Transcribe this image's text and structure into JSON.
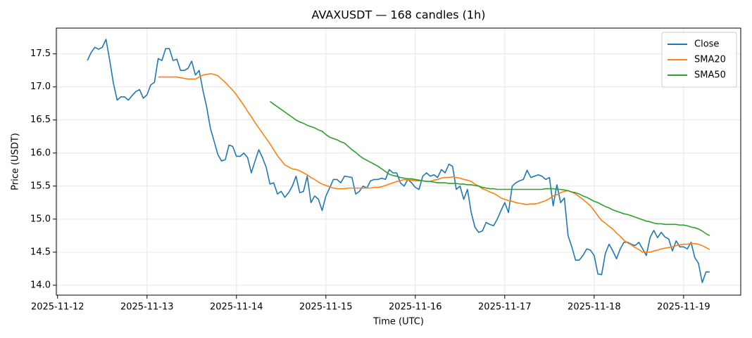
{
  "chart_data": {
    "type": "line",
    "title": "AVAXUSDT — 168 candles (1h)",
    "x_label": "Time (UTC)",
    "y_label": "Price (USDT)",
    "x": [
      "2025-11-12 08:00",
      "2025-11-12 09:00",
      "2025-11-12 10:00",
      "2025-11-12 11:00",
      "2025-11-12 12:00",
      "2025-11-12 13:00",
      "2025-11-12 14:00",
      "2025-11-12 15:00",
      "2025-11-12 16:00",
      "2025-11-12 17:00",
      "2025-11-12 18:00",
      "2025-11-12 19:00",
      "2025-11-12 20:00",
      "2025-11-12 21:00",
      "2025-11-12 22:00",
      "2025-11-12 23:00",
      "2025-11-13 00:00",
      "2025-11-13 01:00",
      "2025-11-13 02:00",
      "2025-11-13 03:00",
      "2025-11-13 04:00",
      "2025-11-13 05:00",
      "2025-11-13 06:00",
      "2025-11-13 07:00",
      "2025-11-13 08:00",
      "2025-11-13 09:00",
      "2025-11-13 10:00",
      "2025-11-13 11:00",
      "2025-11-13 12:00",
      "2025-11-13 13:00",
      "2025-11-13 14:00",
      "2025-11-13 15:00",
      "2025-11-13 16:00",
      "2025-11-13 17:00",
      "2025-11-13 18:00",
      "2025-11-13 19:00",
      "2025-11-13 20:00",
      "2025-11-13 21:00",
      "2025-11-13 22:00",
      "2025-11-13 23:00",
      "2025-11-14 00:00",
      "2025-11-14 01:00",
      "2025-11-14 02:00",
      "2025-11-14 03:00",
      "2025-11-14 04:00",
      "2025-11-14 05:00",
      "2025-11-14 06:00",
      "2025-11-14 07:00",
      "2025-11-14 08:00",
      "2025-11-14 09:00",
      "2025-11-14 10:00",
      "2025-11-14 11:00",
      "2025-11-14 12:00",
      "2025-11-14 13:00",
      "2025-11-14 14:00",
      "2025-11-14 15:00",
      "2025-11-14 16:00",
      "2025-11-14 17:00",
      "2025-11-14 18:00",
      "2025-11-14 19:00",
      "2025-11-14 20:00",
      "2025-11-14 21:00",
      "2025-11-14 22:00",
      "2025-11-14 23:00",
      "2025-11-15 00:00",
      "2025-11-15 01:00",
      "2025-11-15 02:00",
      "2025-11-15 03:00",
      "2025-11-15 04:00",
      "2025-11-15 05:00",
      "2025-11-15 06:00",
      "2025-11-15 07:00",
      "2025-11-15 08:00",
      "2025-11-15 09:00",
      "2025-11-15 10:00",
      "2025-11-15 11:00",
      "2025-11-15 12:00",
      "2025-11-15 13:00",
      "2025-11-15 14:00",
      "2025-11-15 15:00",
      "2025-11-15 16:00",
      "2025-11-15 17:00",
      "2025-11-15 18:00",
      "2025-11-15 19:00",
      "2025-11-15 20:00",
      "2025-11-15 21:00",
      "2025-11-15 22:00",
      "2025-11-15 23:00",
      "2025-11-16 00:00",
      "2025-11-16 01:00",
      "2025-11-16 02:00",
      "2025-11-16 03:00",
      "2025-11-16 04:00",
      "2025-11-16 05:00",
      "2025-11-16 06:00",
      "2025-11-16 07:00",
      "2025-11-16 08:00",
      "2025-11-16 09:00",
      "2025-11-16 10:00",
      "2025-11-16 11:00",
      "2025-11-16 12:00",
      "2025-11-16 13:00",
      "2025-11-16 14:00",
      "2025-11-16 15:00",
      "2025-11-16 16:00",
      "2025-11-16 17:00",
      "2025-11-16 18:00",
      "2025-11-16 19:00",
      "2025-11-16 20:00",
      "2025-11-16 21:00",
      "2025-11-16 22:00",
      "2025-11-16 23:00",
      "2025-11-17 00:00",
      "2025-11-17 01:00",
      "2025-11-17 02:00",
      "2025-11-17 03:00",
      "2025-11-17 04:00",
      "2025-11-17 05:00",
      "2025-11-17 06:00",
      "2025-11-17 07:00",
      "2025-11-17 08:00",
      "2025-11-17 09:00",
      "2025-11-17 10:00",
      "2025-11-17 11:00",
      "2025-11-17 12:00",
      "2025-11-17 13:00",
      "2025-11-17 14:00",
      "2025-11-17 15:00",
      "2025-11-17 16:00",
      "2025-11-17 17:00",
      "2025-11-17 18:00",
      "2025-11-17 19:00",
      "2025-11-17 20:00",
      "2025-11-17 21:00",
      "2025-11-17 22:00",
      "2025-11-17 23:00",
      "2025-11-18 00:00",
      "2025-11-18 01:00",
      "2025-11-18 02:00",
      "2025-11-18 03:00",
      "2025-11-18 04:00",
      "2025-11-18 05:00",
      "2025-11-18 06:00",
      "2025-11-18 07:00",
      "2025-11-18 08:00",
      "2025-11-18 09:00",
      "2025-11-18 10:00",
      "2025-11-18 11:00",
      "2025-11-18 12:00",
      "2025-11-18 13:00",
      "2025-11-18 14:00",
      "2025-11-18 15:00",
      "2025-11-18 16:00",
      "2025-11-18 17:00",
      "2025-11-18 18:00",
      "2025-11-18 19:00",
      "2025-11-18 20:00",
      "2025-11-18 21:00",
      "2025-11-18 22:00",
      "2025-11-18 23:00",
      "2025-11-19 00:00",
      "2025-11-19 01:00",
      "2025-11-19 02:00",
      "2025-11-19 03:00",
      "2025-11-19 04:00",
      "2025-11-19 05:00",
      "2025-11-19 06:00",
      "2025-11-19 07:00"
    ],
    "series": [
      {
        "name": "Close",
        "color": "#1f77b4",
        "values": [
          17.4,
          17.52,
          17.6,
          17.57,
          17.6,
          17.72,
          17.4,
          17.05,
          16.8,
          16.85,
          16.85,
          16.8,
          16.87,
          16.93,
          16.96,
          16.83,
          16.88,
          17.03,
          17.07,
          17.43,
          17.4,
          17.58,
          17.58,
          17.4,
          17.42,
          17.25,
          17.25,
          17.28,
          17.39,
          17.18,
          17.25,
          16.95,
          16.7,
          16.38,
          16.18,
          15.98,
          15.88,
          15.9,
          16.12,
          16.1,
          15.95,
          15.95,
          16.0,
          15.93,
          15.7,
          15.88,
          16.05,
          15.93,
          15.78,
          15.53,
          15.55,
          15.38,
          15.42,
          15.33,
          15.4,
          15.5,
          15.65,
          15.4,
          15.42,
          15.65,
          15.25,
          15.35,
          15.3,
          15.13,
          15.35,
          15.47,
          15.6,
          15.6,
          15.55,
          15.65,
          15.64,
          15.63,
          15.38,
          15.42,
          15.5,
          15.47,
          15.58,
          15.6,
          15.6,
          15.62,
          15.6,
          15.75,
          15.7,
          15.7,
          15.55,
          15.5,
          15.6,
          15.55,
          15.48,
          15.45,
          15.65,
          15.7,
          15.65,
          15.67,
          15.63,
          15.75,
          15.7,
          15.83,
          15.8,
          15.45,
          15.5,
          15.3,
          15.45,
          15.1,
          14.88,
          14.8,
          14.82,
          14.95,
          14.92,
          14.9,
          15.0,
          15.13,
          15.25,
          15.1,
          15.5,
          15.55,
          15.58,
          15.6,
          15.74,
          15.63,
          15.65,
          15.67,
          15.65,
          15.6,
          15.63,
          15.2,
          15.52,
          15.25,
          15.32,
          14.75,
          14.58,
          14.38,
          14.38,
          14.45,
          14.55,
          14.53,
          14.45,
          14.17,
          14.16,
          14.48,
          14.62,
          14.52,
          14.4,
          14.55,
          14.65,
          14.65,
          14.62,
          14.6,
          14.65,
          14.55,
          14.45,
          14.72,
          14.83,
          14.72,
          14.8,
          14.73,
          14.7,
          14.52,
          14.67,
          14.58,
          14.58,
          14.55,
          14.65,
          14.42,
          14.33,
          14.04,
          14.2,
          14.2
        ]
      },
      {
        "name": "SMA20",
        "color": "#ff7f0e",
        "values": [
          null,
          null,
          null,
          null,
          null,
          null,
          null,
          null,
          null,
          null,
          null,
          null,
          null,
          null,
          null,
          null,
          null,
          null,
          null,
          17.15,
          17.15,
          17.15,
          17.15,
          17.15,
          17.15,
          17.14,
          17.13,
          17.12,
          17.12,
          17.12,
          17.15,
          17.18,
          17.19,
          17.2,
          17.19,
          17.17,
          17.12,
          17.07,
          17.01,
          16.95,
          16.88,
          16.8,
          16.72,
          16.63,
          16.55,
          16.46,
          16.38,
          16.3,
          16.22,
          16.14,
          16.05,
          15.96,
          15.89,
          15.82,
          15.79,
          15.76,
          15.75,
          15.73,
          15.7,
          15.67,
          15.63,
          15.6,
          15.56,
          15.53,
          15.51,
          15.49,
          15.47,
          15.46,
          15.46,
          15.46,
          15.47,
          15.47,
          15.47,
          15.47,
          15.47,
          15.47,
          15.47,
          15.48,
          15.48,
          15.49,
          15.51,
          15.53,
          15.55,
          15.57,
          15.58,
          15.6,
          15.59,
          15.59,
          15.58,
          15.58,
          15.58,
          15.57,
          15.57,
          15.59,
          15.6,
          15.62,
          15.63,
          15.63,
          15.64,
          15.63,
          15.62,
          15.6,
          15.59,
          15.57,
          15.53,
          15.5,
          15.46,
          15.44,
          15.41,
          15.39,
          15.36,
          15.32,
          15.3,
          15.28,
          15.27,
          15.25,
          15.24,
          15.23,
          15.22,
          15.23,
          15.23,
          15.24,
          15.26,
          15.28,
          15.31,
          15.35,
          15.37,
          15.4,
          15.42,
          15.43,
          15.41,
          15.38,
          15.34,
          15.3,
          15.25,
          15.2,
          15.13,
          15.05,
          14.98,
          14.94,
          14.89,
          14.85,
          14.79,
          14.74,
          14.68,
          14.64,
          14.61,
          14.57,
          14.54,
          14.5,
          14.5,
          14.5,
          14.52,
          14.53,
          14.55,
          14.56,
          14.57,
          14.58,
          14.6,
          14.61,
          14.62,
          14.62,
          14.63,
          14.63,
          14.62,
          14.6,
          14.57,
          14.54
        ]
      },
      {
        "name": "SMA50",
        "color": "#2ca02c",
        "values": [
          null,
          null,
          null,
          null,
          null,
          null,
          null,
          null,
          null,
          null,
          null,
          null,
          null,
          null,
          null,
          null,
          null,
          null,
          null,
          null,
          null,
          null,
          null,
          null,
          null,
          null,
          null,
          null,
          null,
          null,
          null,
          null,
          null,
          null,
          null,
          null,
          null,
          null,
          null,
          null,
          null,
          null,
          null,
          null,
          null,
          null,
          null,
          null,
          null,
          16.78,
          16.74,
          16.7,
          16.66,
          16.62,
          16.58,
          16.54,
          16.5,
          16.47,
          16.45,
          16.42,
          16.4,
          16.38,
          16.35,
          16.33,
          16.28,
          16.24,
          16.22,
          16.2,
          16.17,
          16.15,
          16.1,
          16.05,
          16.01,
          15.96,
          15.92,
          15.89,
          15.86,
          15.83,
          15.8,
          15.76,
          15.72,
          15.68,
          15.66,
          15.65,
          15.63,
          15.62,
          15.61,
          15.61,
          15.6,
          15.59,
          15.58,
          15.57,
          15.57,
          15.56,
          15.55,
          15.55,
          15.55,
          15.54,
          15.54,
          15.54,
          15.53,
          15.53,
          15.52,
          15.52,
          15.51,
          15.5,
          15.48,
          15.47,
          15.46,
          15.46,
          15.45,
          15.45,
          15.45,
          15.45,
          15.45,
          15.45,
          15.45,
          15.45,
          15.45,
          15.45,
          15.45,
          15.45,
          15.45,
          15.46,
          15.46,
          15.46,
          15.45,
          15.45,
          15.44,
          15.43,
          15.41,
          15.4,
          15.38,
          15.35,
          15.33,
          15.3,
          15.27,
          15.25,
          15.22,
          15.19,
          15.17,
          15.14,
          15.12,
          15.1,
          15.08,
          15.07,
          15.05,
          15.03,
          15.01,
          14.99,
          14.97,
          14.96,
          14.94,
          14.93,
          14.93,
          14.92,
          14.92,
          14.92,
          14.92,
          14.91,
          14.91,
          14.9,
          14.88,
          14.87,
          14.85,
          14.82,
          14.78,
          14.75
        ]
      }
    ],
    "xlim": [
      "2025-11-11 23:40",
      "2025-11-19 15:20"
    ],
    "xticks": [
      {
        "value": "2025-11-12 00:00",
        "label": "2025-11-12"
      },
      {
        "value": "2025-11-13 00:00",
        "label": "2025-11-13"
      },
      {
        "value": "2025-11-14 00:00",
        "label": "2025-11-14"
      },
      {
        "value": "2025-11-15 00:00",
        "label": "2025-11-15"
      },
      {
        "value": "2025-11-16 00:00",
        "label": "2025-11-16"
      },
      {
        "value": "2025-11-17 00:00",
        "label": "2025-11-17"
      },
      {
        "value": "2025-11-18 00:00",
        "label": "2025-11-18"
      },
      {
        "value": "2025-11-19 00:00",
        "label": "2025-11-19"
      }
    ],
    "ylim": [
      13.85,
      17.89
    ],
    "yticks": [
      {
        "value": 14,
        "label": "14.0"
      },
      14.5,
      {
        "value": 15,
        "label": "15.0"
      },
      15.5,
      {
        "value": 16,
        "label": "16.0"
      },
      16.5,
      {
        "value": 17,
        "label": "17.0"
      },
      17.5
    ],
    "grid": true,
    "legend": "upper right"
  }
}
